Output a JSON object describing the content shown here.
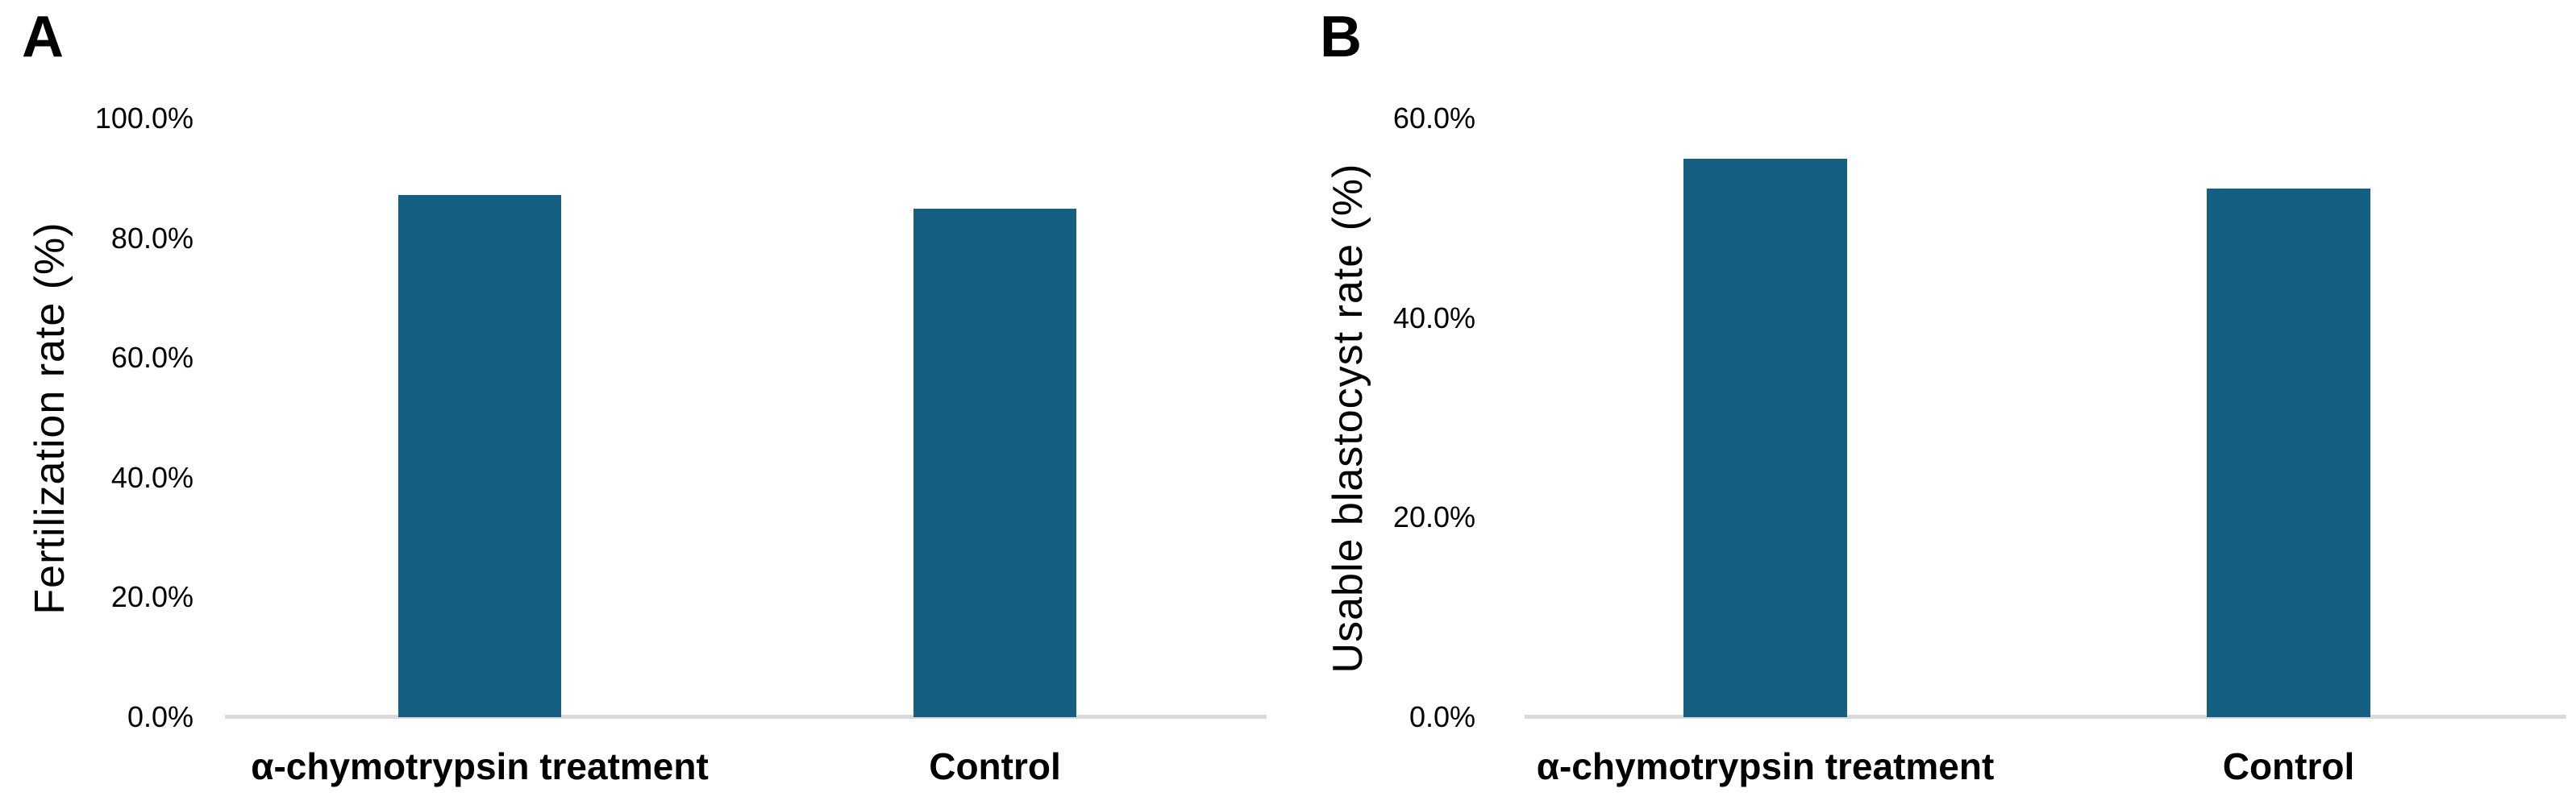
{
  "chart_data": [
    {
      "type": "bar",
      "panel_label": "A",
      "title": "",
      "xlabel": "",
      "ylabel": "Fertilization rate (%)",
      "categories": [
        "α-chymotrypsin treatment",
        "Control"
      ],
      "values": [
        87.2,
        84.9
      ],
      "value_unit": "%",
      "ylim": [
        0,
        100
      ],
      "ytick_values": [
        0,
        20,
        40,
        60,
        80,
        100
      ],
      "ytick_labels": [
        "0.0%",
        "20.0%",
        "40.0%",
        "60.0%",
        "80.0%",
        "100.0%"
      ],
      "grid": false,
      "legend": "none",
      "bar_color": "#156082",
      "axis_line_color": "#d9d9d9",
      "text_color": "#000000"
    },
    {
      "type": "bar",
      "panel_label": "B",
      "title": "",
      "xlabel": "",
      "ylabel": "Usable blastocyst rate (%)",
      "categories": [
        "α-chymotrypsin treatment",
        "Control"
      ],
      "values": [
        56.0,
        53.0
      ],
      "value_unit": "%",
      "ylim": [
        0,
        60
      ],
      "ytick_values": [
        0,
        20,
        40,
        60
      ],
      "ytick_labels": [
        "0.0%",
        "20.0%",
        "40.0%",
        "60.0%"
      ],
      "grid": false,
      "legend": "none",
      "bar_color": "#156082",
      "axis_line_color": "#d9d9d9",
      "text_color": "#000000"
    }
  ]
}
